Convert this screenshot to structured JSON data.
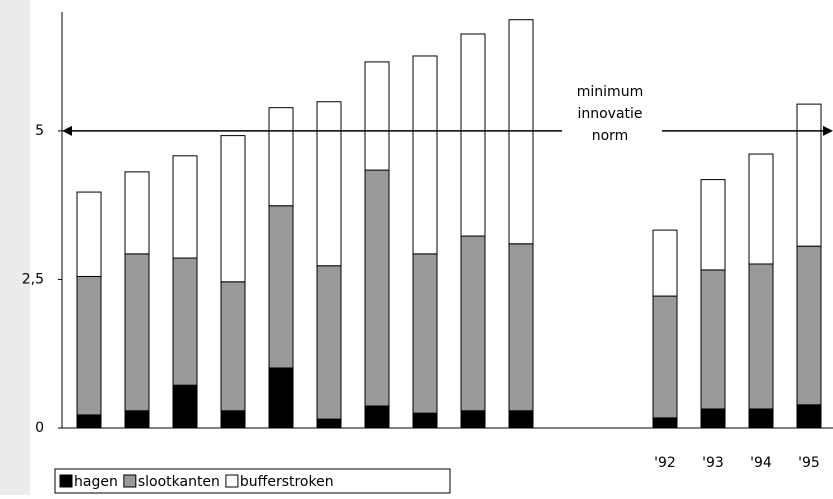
{
  "chart_data": {
    "type": "stacked_bar",
    "categories": [
      null,
      null,
      null,
      null,
      null,
      null,
      null,
      null,
      null,
      null,
      null,
      null,
      "'92",
      "'93",
      "'94",
      "'95"
    ],
    "series": [
      {
        "name": "hagen",
        "color": "#000000",
        "values": [
          0.22,
          0.29,
          0.72,
          0.29,
          1.01,
          0.15,
          0.37,
          0.25,
          0.29,
          0.29,
          null,
          null,
          0.17,
          0.32,
          0.32,
          0.39
        ]
      },
      {
        "name": "slootkanten",
        "color": "#999999",
        "values": [
          2.33,
          2.64,
          2.14,
          2.17,
          2.73,
          2.58,
          3.97,
          2.68,
          2.94,
          2.81,
          null,
          null,
          2.05,
          2.34,
          2.44,
          2.67
        ]
      },
      {
        "name": "bufferstroken",
        "color": "#ffffff",
        "values": [
          1.42,
          1.38,
          1.72,
          2.46,
          1.65,
          2.76,
          1.82,
          3.33,
          3.4,
          3.77,
          null,
          null,
          1.11,
          1.52,
          1.85,
          2.39
        ]
      }
    ],
    "ylim": [
      0,
      7
    ],
    "yticks": [
      0,
      {
        "value": 2.5,
        "label": "2,5"
      },
      5
    ],
    "reference_line": {
      "value": 5,
      "label": [
        "minimum",
        "innovatie",
        "norm"
      ]
    },
    "legend": "bottom-left"
  }
}
